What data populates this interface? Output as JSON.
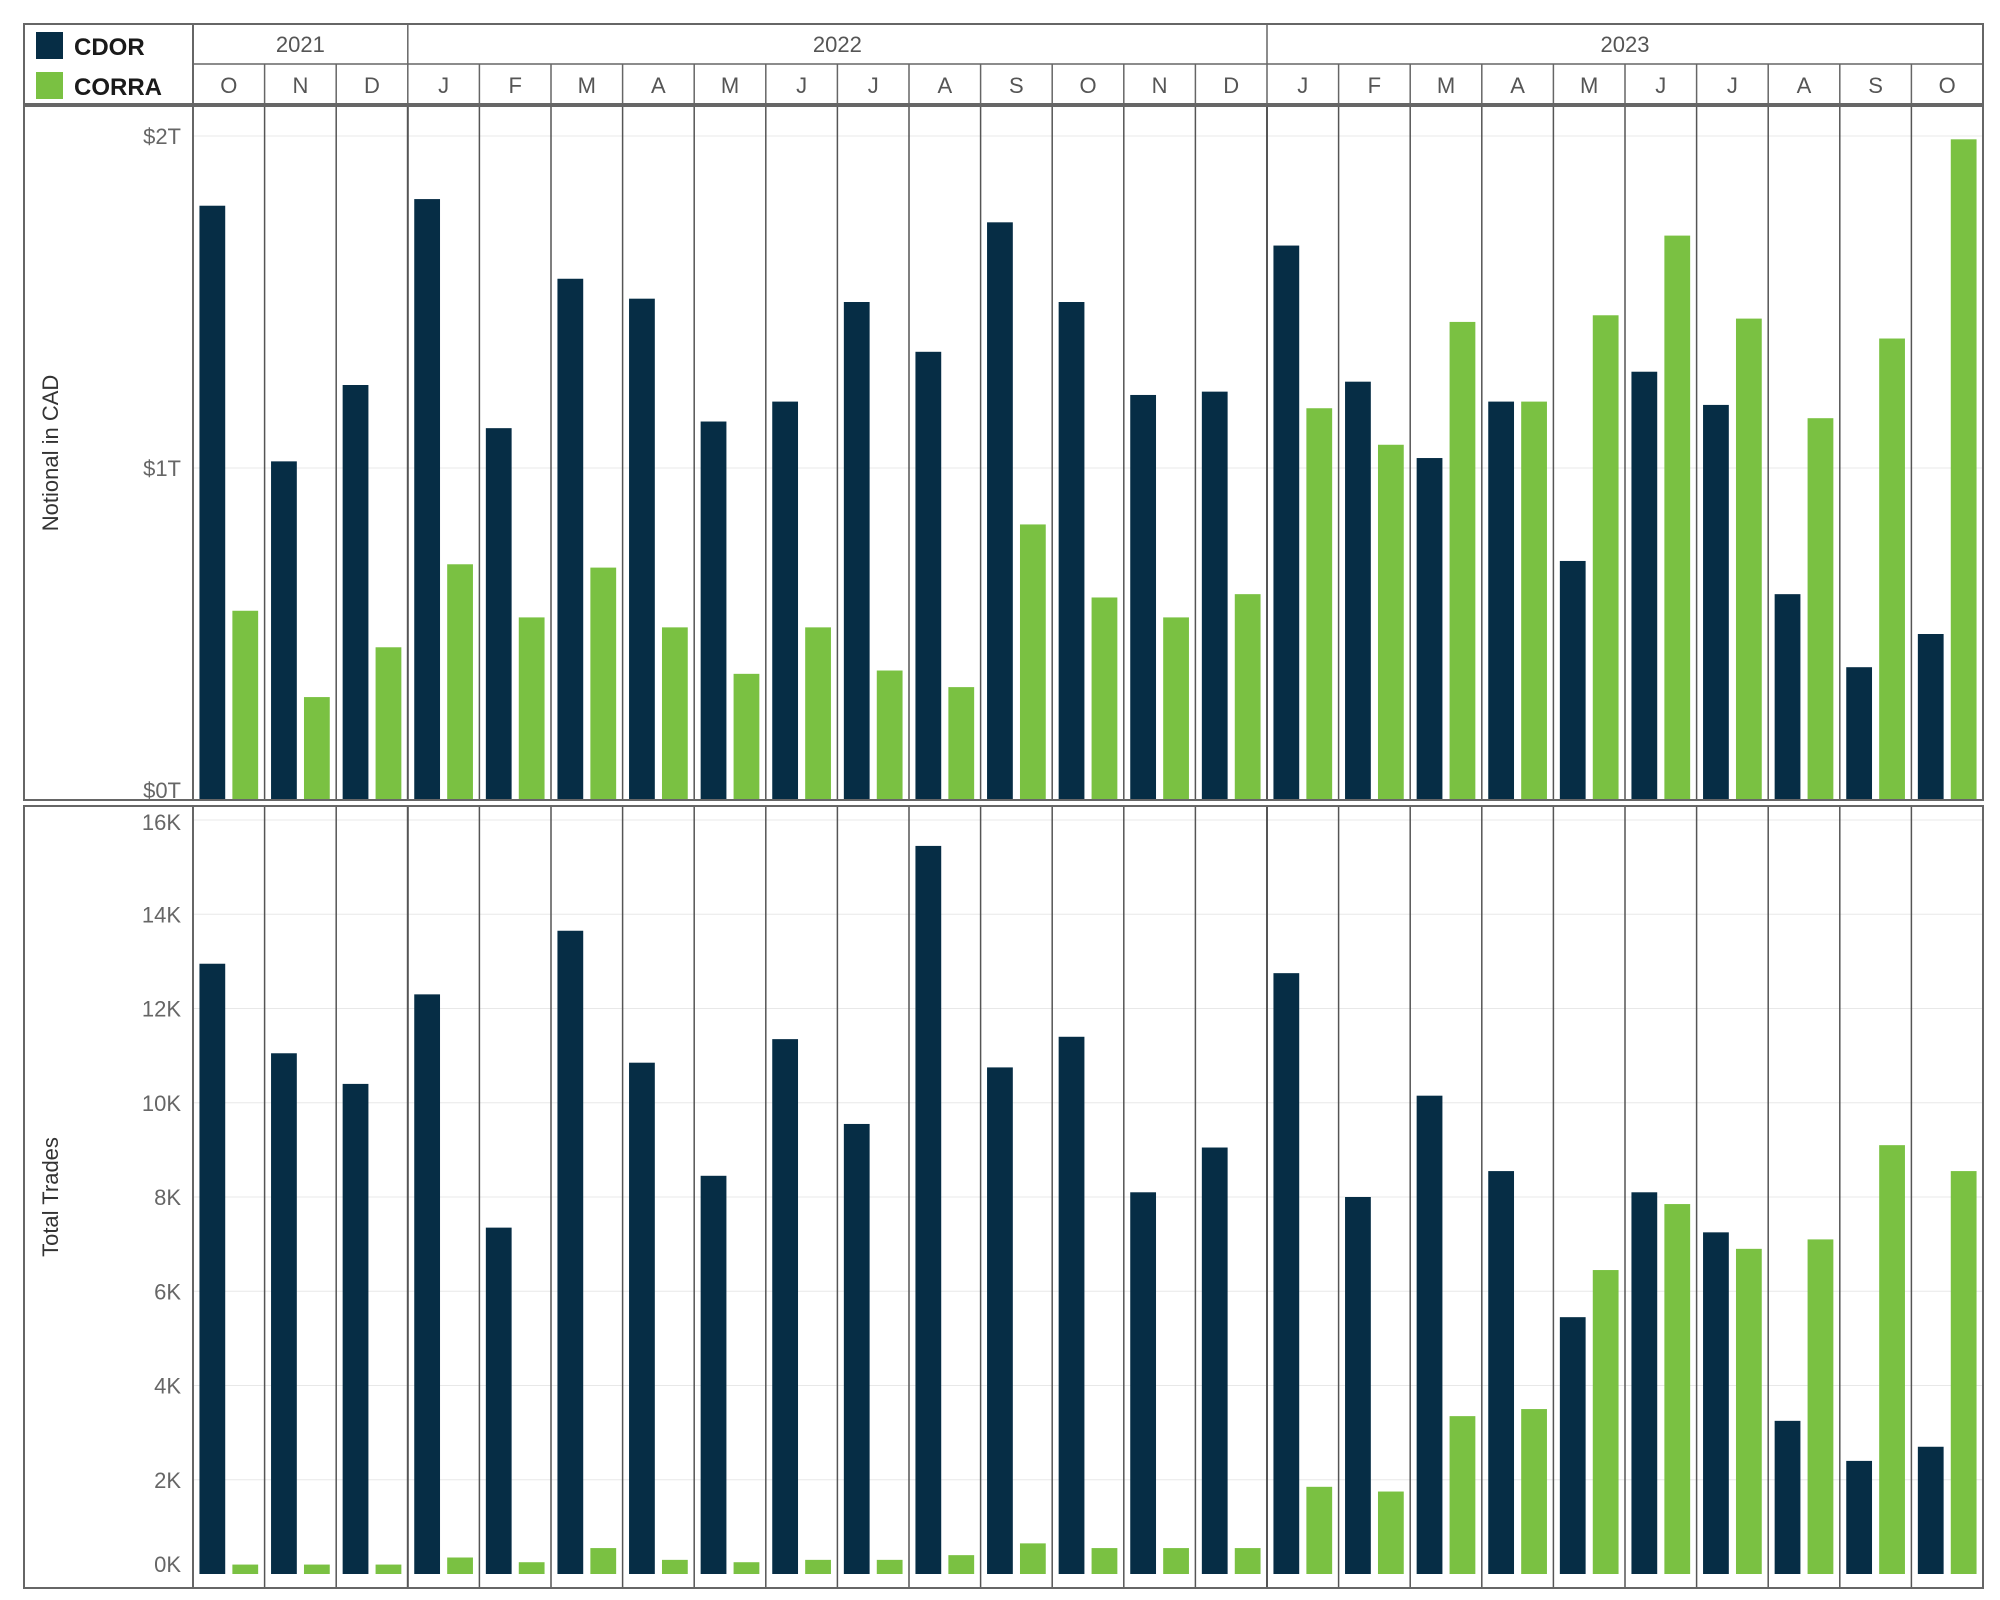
{
  "chart_data": {
    "type": "bar",
    "legend": {
      "position": "top-left",
      "entries": [
        {
          "name": "CDOR",
          "color": "#062d45"
        },
        {
          "name": "CORRA",
          "color": "#7ac142"
        }
      ]
    },
    "years": [
      {
        "label": "2021",
        "months": 3
      },
      {
        "label": "2022",
        "months": 12
      },
      {
        "label": "2023",
        "months": 10
      }
    ],
    "categories": [
      "O",
      "N",
      "D",
      "J",
      "F",
      "M",
      "A",
      "M",
      "J",
      "J",
      "A",
      "S",
      "O",
      "N",
      "D",
      "J",
      "F",
      "M",
      "A",
      "M",
      "J",
      "J",
      "A",
      "S",
      "O"
    ],
    "panels": [
      {
        "ylabel": "Notional in CAD",
        "ylim": [
          0,
          2
        ],
        "yticks": [
          0,
          1,
          2
        ],
        "yticklabels": [
          "$0T",
          "$1T",
          "$2T"
        ],
        "unit": "trillion CAD",
        "series": [
          {
            "name": "CDOR",
            "values": [
              1.79,
              1.02,
              1.25,
              1.81,
              1.12,
              1.57,
              1.51,
              1.14,
              1.2,
              1.5,
              1.35,
              1.74,
              1.5,
              1.22,
              1.23,
              1.67,
              1.26,
              1.03,
              1.2,
              0.72,
              1.29,
              1.19,
              0.62,
              0.4,
              0.5
            ]
          },
          {
            "name": "CORRA",
            "values": [
              0.57,
              0.31,
              0.46,
              0.71,
              0.55,
              0.7,
              0.52,
              0.38,
              0.52,
              0.39,
              0.34,
              0.83,
              0.61,
              0.55,
              0.62,
              1.18,
              1.07,
              1.44,
              1.2,
              1.46,
              1.7,
              1.45,
              1.15,
              1.39,
              1.99
            ]
          }
        ]
      },
      {
        "ylabel": "Total Trades",
        "ylim": [
          0,
          16000
        ],
        "yticks": [
          0,
          2000,
          4000,
          6000,
          8000,
          10000,
          12000,
          14000,
          16000
        ],
        "yticklabels": [
          "0K",
          "2K",
          "4K",
          "6K",
          "8K",
          "10K",
          "12K",
          "14K",
          "16K"
        ],
        "unit": "trades",
        "series": [
          {
            "name": "CDOR",
            "values": [
              12950,
              11050,
              10400,
              12300,
              7350,
              13650,
              10850,
              8450,
              11350,
              9550,
              15450,
              10750,
              11400,
              8100,
              9050,
              12750,
              8000,
              10150,
              8550,
              5450,
              8100,
              7250,
              3250,
              2400,
              2700
            ]
          },
          {
            "name": "CORRA",
            "values": [
              200,
              200,
              200,
              350,
              250,
              550,
              300,
              250,
              300,
              300,
              400,
              650,
              550,
              550,
              550,
              1850,
              1750,
              3350,
              3500,
              6450,
              7850,
              6900,
              7100,
              9100,
              8550
            ]
          }
        ]
      }
    ]
  }
}
